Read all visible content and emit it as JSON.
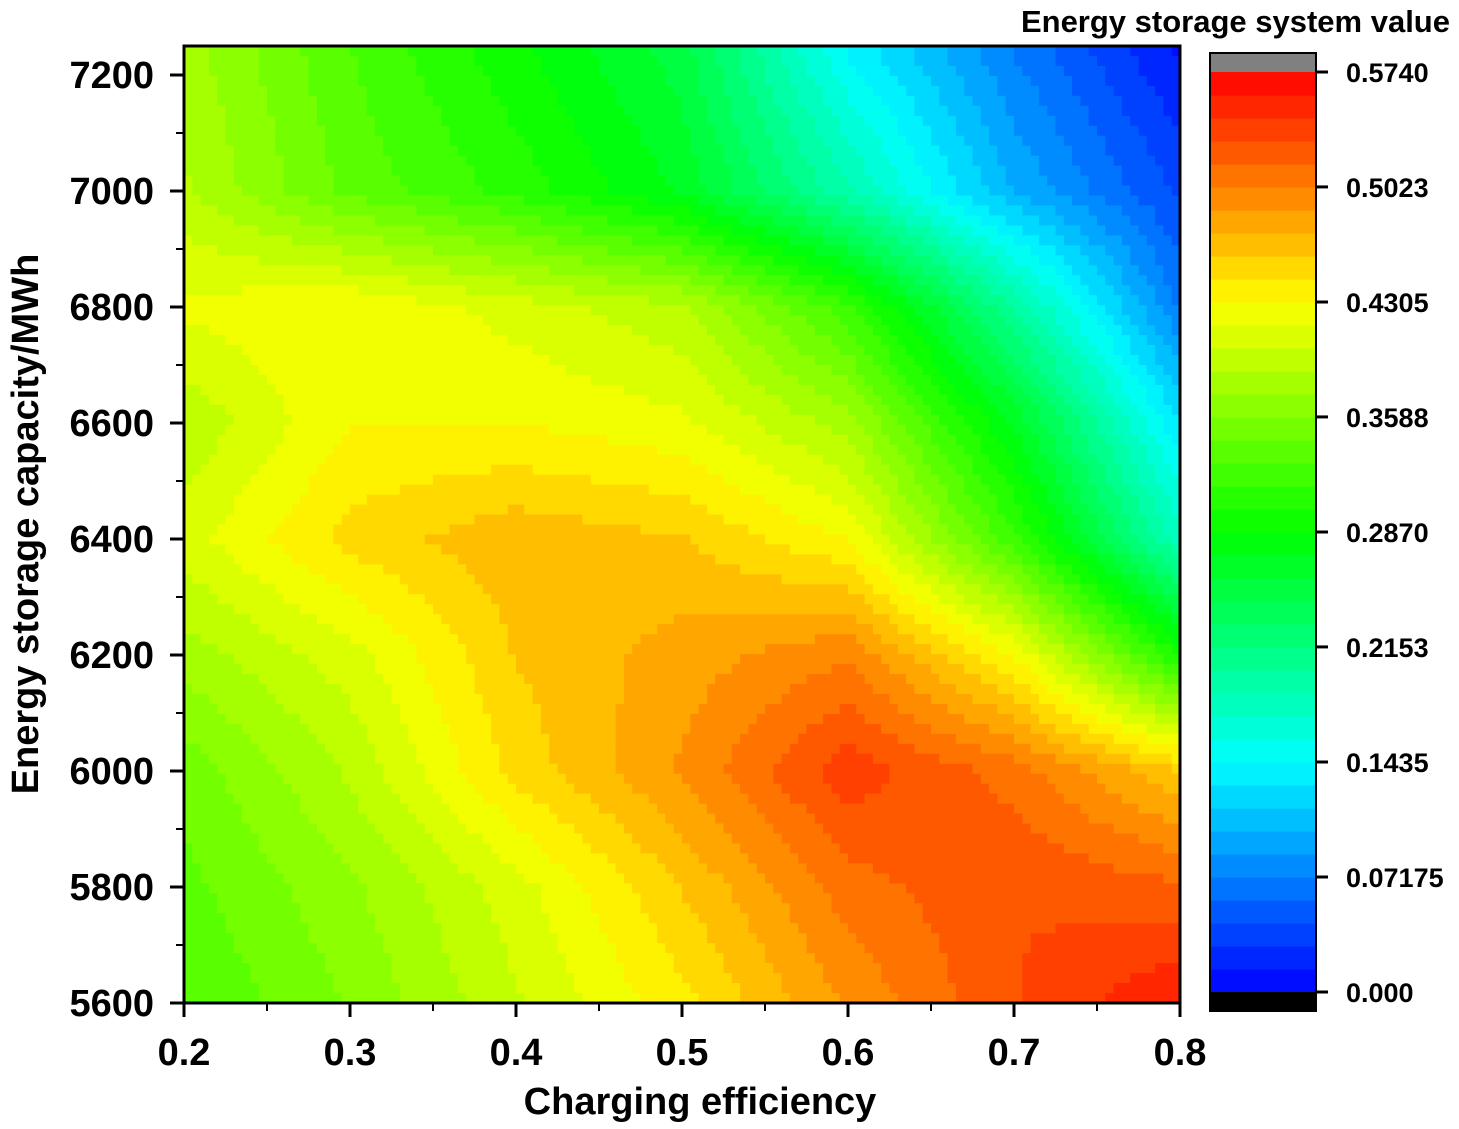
{
  "chart_data": {
    "type": "heatmap",
    "subtype": "filled-contour",
    "title": "",
    "xlabel": "Charging efficiency",
    "ylabel": "Energy storage capacity/MWh",
    "xlim": [
      0.2,
      0.8
    ],
    "ylim": [
      5600,
      7250
    ],
    "x_ticks": [
      0.2,
      0.3,
      0.4,
      0.5,
      0.6,
      0.7,
      0.8
    ],
    "x_tick_labels": [
      "0.2",
      "0.3",
      "0.4",
      "0.5",
      "0.6",
      "0.7",
      "0.8"
    ],
    "y_ticks": [
      5600,
      5800,
      6000,
      6200,
      6400,
      6600,
      6800,
      7000,
      7200
    ],
    "y_tick_labels": [
      "5600",
      "5800",
      "6000",
      "6200",
      "6400",
      "6600",
      "6800",
      "7000",
      "7200"
    ],
    "x": [
      0.2,
      0.3,
      0.4,
      0.5,
      0.6,
      0.7,
      0.8
    ],
    "y": [
      5600,
      5800,
      6000,
      6200,
      6400,
      6600,
      6800,
      7000,
      7250
    ],
    "z": [
      [
        0.33,
        0.36,
        0.4,
        0.44,
        0.49,
        0.53,
        0.56
      ],
      [
        0.34,
        0.37,
        0.41,
        0.46,
        0.51,
        0.53,
        0.52
      ],
      [
        0.35,
        0.39,
        0.45,
        0.49,
        0.54,
        0.51,
        0.46
      ],
      [
        0.38,
        0.41,
        0.46,
        0.48,
        0.5,
        0.43,
        0.3
      ],
      [
        0.41,
        0.45,
        0.47,
        0.46,
        0.43,
        0.32,
        0.18
      ],
      [
        0.39,
        0.43,
        0.43,
        0.42,
        0.38,
        0.27,
        0.13
      ],
      [
        0.42,
        0.43,
        0.41,
        0.39,
        0.32,
        0.2,
        0.07
      ],
      [
        0.39,
        0.34,
        0.31,
        0.27,
        0.19,
        0.1,
        0.04
      ],
      [
        0.38,
        0.33,
        0.29,
        0.25,
        0.14,
        0.07,
        0.01
      ]
    ],
    "colorbar": {
      "title": "Energy storage system value",
      "min": 0.0,
      "max": 0.574,
      "levels": 40,
      "tick_values": [
        0.0,
        0.07175,
        0.1435,
        0.2153,
        0.287,
        0.3588,
        0.4305,
        0.5023,
        0.574
      ],
      "tick_labels": [
        "0.000",
        "0.07175",
        "0.1435",
        "0.2153",
        "0.2870",
        "0.3588",
        "0.4305",
        "0.5023",
        "0.5740"
      ],
      "under_color": "#000000",
      "over_color": "#808080",
      "colors": [
        "#0000ff",
        "#00ffff",
        "#00ff00",
        "#ffff00",
        "#ff0000"
      ]
    }
  }
}
